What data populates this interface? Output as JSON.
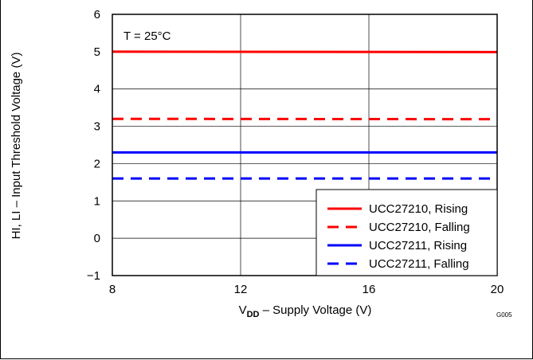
{
  "chart_data": {
    "type": "line",
    "annotation": "T = 25°C",
    "xlabel_main": "V",
    "xlabel_sub": "DD",
    "xlabel_rest": " – Supply Voltage (V)",
    "ylabel": "HI, LI – Input Threshold Voltage  (V)",
    "figure_id": "G005",
    "xlim": [
      8,
      20
    ],
    "ylim": [
      -1,
      6
    ],
    "xticks": [
      8,
      12,
      16,
      20
    ],
    "yticks": [
      -1,
      0,
      1,
      2,
      3,
      4,
      5,
      6
    ],
    "ytick_labels": [
      "−1",
      "0",
      "1",
      "2",
      "3",
      "4",
      "5",
      "6"
    ],
    "grid": true,
    "legend_position": "bottom-right",
    "series": [
      {
        "name": "UCC27210, Rising",
        "color": "#ff0000",
        "dash": false,
        "x": [
          8,
          20
        ],
        "y": [
          5.0,
          4.99
        ]
      },
      {
        "name": "UCC27210, Falling",
        "color": "#ff0000",
        "dash": true,
        "x": [
          8,
          20
        ],
        "y": [
          3.2,
          3.19
        ]
      },
      {
        "name": "UCC27211, Rising",
        "color": "#0000ff",
        "dash": false,
        "x": [
          8,
          20
        ],
        "y": [
          2.3,
          2.3
        ]
      },
      {
        "name": "UCC27211, Falling",
        "color": "#0000ff",
        "dash": true,
        "x": [
          8,
          20
        ],
        "y": [
          1.6,
          1.6
        ]
      }
    ]
  }
}
